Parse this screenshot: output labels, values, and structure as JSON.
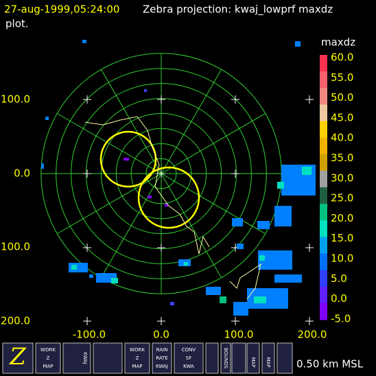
{
  "header": {
    "time": "27-aug-1999,05:24:00",
    "title": "Zebra projection: kwaj_lowprf maxdz",
    "title_cont": "plot."
  },
  "axes": {
    "x_labels": [
      "-100.0",
      "0.0",
      "100.0",
      "200.0"
    ],
    "y_labels": [
      "100.0",
      "0.0",
      "100.0",
      "200.0"
    ]
  },
  "colorbar": {
    "title": "maxdz",
    "labels": [
      "60.0",
      "55.0",
      "50.0",
      "45.0",
      "40.0",
      "35.0",
      "30.0",
      "25.0",
      "20.0",
      "15.0",
      "10.0",
      "5.0",
      "0.0",
      "-5.0"
    ]
  },
  "toolbar": {
    "work_map_1": [
      "WORK",
      "Z",
      "MAP"
    ],
    "work_map_2": [
      "WORK",
      "Z",
      "MAP"
    ],
    "kwaj": "KWAJ",
    "rain": [
      "RAIN",
      "RATE",
      "KWAJ"
    ],
    "conv": [
      "CONV",
      "SF",
      "KWA"
    ],
    "bounds": "BOUNDS",
    "map_1": "MAP",
    "map_2": "MAP"
  },
  "footer": {
    "altitude": "0.50 km MSL"
  }
}
